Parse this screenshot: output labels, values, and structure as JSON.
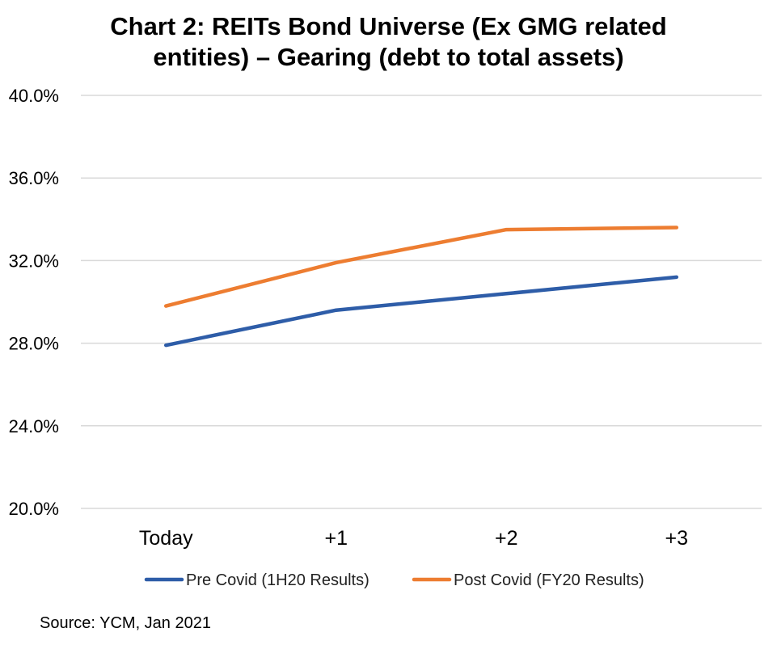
{
  "chart_data": {
    "type": "line",
    "title_lines": [
      "Chart 2: REITs Bond Universe (Ex GMG related",
      "entities) – Gearing (debt to total assets)"
    ],
    "categories": [
      "Today",
      "+1",
      "+2",
      "+3"
    ],
    "series": [
      {
        "name": "Pre Covid (1H20 Results)",
        "color": "#2E5DA8",
        "values": [
          27.9,
          29.6,
          30.4,
          31.2
        ]
      },
      {
        "name": "Post Covid (FY20 Results)",
        "color": "#ED7D31",
        "values": [
          29.8,
          31.9,
          33.5,
          33.6
        ]
      }
    ],
    "ylim": [
      20.0,
      40.0
    ],
    "yticks": [
      20.0,
      24.0,
      28.0,
      32.0,
      36.0,
      40.0
    ],
    "ytick_labels": [
      "20.0%",
      "24.0%",
      "28.0%",
      "32.0%",
      "36.0%",
      "40.0%"
    ],
    "xlabel": "",
    "ylabel": "",
    "grid": true,
    "legend_position": "bottom"
  },
  "source": "Source: YCM, Jan 2021"
}
